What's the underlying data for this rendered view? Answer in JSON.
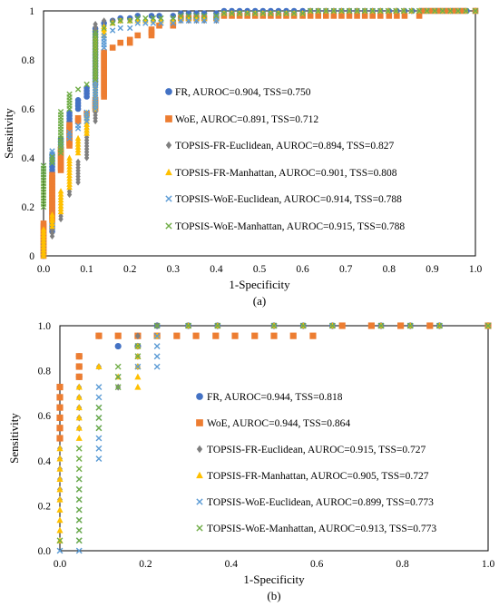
{
  "chart_data": [
    {
      "type": "scatter",
      "panel_label": "(a)",
      "xlabel": "1-Specificity",
      "ylabel": "Sensitivity",
      "xlim": [
        0,
        1
      ],
      "ylim": [
        0,
        1
      ],
      "xticks": [
        "0.0",
        "0.1",
        "0.2",
        "0.3",
        "0.4",
        "0.5",
        "0.6",
        "0.7",
        "0.8",
        "0.9",
        "1.0"
      ],
      "yticks": [
        "0",
        "0.2",
        "0.4",
        "0.6",
        "0.8",
        "1"
      ],
      "grid": false,
      "legend_position": "center",
      "series": [
        {
          "name": "FR, AUROC=0.904, TSS=0.750",
          "color": "#4472C4",
          "marker": "circle",
          "x": [
            0,
            0.02,
            0.04,
            0.06,
            0.08,
            0.1,
            0.12,
            0.14,
            0.16,
            0.2,
            0.25,
            0.3,
            0.4,
            0.6,
            0.8,
            1.0
          ],
          "y": [
            0,
            0.1,
            0.43,
            0.5,
            0.6,
            0.65,
            0.7,
            0.95,
            0.96,
            0.97,
            0.98,
            0.98,
            0.99,
            1.0,
            1.0,
            1.0
          ]
        },
        {
          "name": "WoE, AUROC=0.891, TSS=0.712",
          "color": "#ED7D31",
          "marker": "square",
          "x": [
            0,
            0.02,
            0.04,
            0.06,
            0.08,
            0.1,
            0.12,
            0.14,
            0.16,
            0.2,
            0.25,
            0.3,
            0.4,
            0.6,
            0.8,
            0.87,
            0.88,
            1.0
          ],
          "y": [
            0,
            0.15,
            0.35,
            0.45,
            0.55,
            0.58,
            0.6,
            0.65,
            0.85,
            0.87,
            0.9,
            0.94,
            0.97,
            0.98,
            0.98,
            0.98,
            1.0,
            1.0
          ]
        },
        {
          "name": "TOPSIS-FR-Euclidean, AUROC=0.894, TSS=0.827",
          "color": "#7F7F7F",
          "marker": "diamond",
          "x": [
            0,
            0.02,
            0.04,
            0.06,
            0.08,
            0.1,
            0.12,
            0.14,
            0.16,
            0.2,
            0.3,
            0.4,
            0.6,
            1.0
          ],
          "y": [
            0,
            0.08,
            0.15,
            0.25,
            0.3,
            0.4,
            0.55,
            0.96,
            0.96,
            0.96,
            0.96,
            0.96,
            0.99,
            1.0
          ]
        },
        {
          "name": "TOPSIS-FR-Manhattan, AUROC=0.901, TSS=0.808",
          "color": "#FFC000",
          "marker": "triangle",
          "x": [
            0,
            0.02,
            0.04,
            0.06,
            0.08,
            0.1,
            0.12,
            0.14,
            0.16,
            0.2,
            0.3,
            0.4,
            0.6,
            1.0
          ],
          "y": [
            0,
            0.12,
            0.18,
            0.28,
            0.42,
            0.5,
            0.6,
            0.9,
            0.95,
            0.96,
            0.96,
            0.97,
            0.99,
            1.0
          ]
        },
        {
          "name": "TOPSIS-WoE-Euclidean, AUROC=0.914, TSS=0.788",
          "color": "#5B9BD5",
          "marker": "x",
          "x": [
            0,
            0.02,
            0.04,
            0.06,
            0.08,
            0.1,
            0.12,
            0.14,
            0.16,
            0.2,
            0.3,
            0.4,
            0.6,
            1.0
          ],
          "y": [
            0.32,
            0.38,
            0.45,
            0.48,
            0.52,
            0.55,
            0.6,
            0.85,
            0.92,
            0.93,
            0.95,
            0.96,
            0.99,
            1.0
          ]
        },
        {
          "name": "TOPSIS-WoE-Manhattan, AUROC=0.915, TSS=0.788",
          "color": "#70AD47",
          "marker": "x",
          "x": [
            0,
            0.02,
            0.04,
            0.06,
            0.08,
            0.1,
            0.12,
            0.14,
            0.16,
            0.2,
            0.3,
            0.4,
            0.6,
            1.0
          ],
          "y": [
            0.2,
            0.38,
            0.42,
            0.6,
            0.68,
            0.7,
            0.72,
            0.93,
            0.95,
            0.96,
            0.97,
            0.98,
            0.99,
            1.0
          ]
        }
      ]
    },
    {
      "type": "scatter",
      "panel_label": "(b)",
      "xlabel": "1-Specificity",
      "ylabel": "Sensitivity",
      "xlim": [
        0,
        1
      ],
      "ylim": [
        0,
        1
      ],
      "xticks": [
        "0.0",
        "0.2",
        "0.4",
        "0.6",
        "0.8",
        "1.0"
      ],
      "yticks": [
        "0.0",
        "0.2",
        "0.4",
        "0.6",
        "0.8",
        "1.0"
      ],
      "grid": false,
      "legend_position": "center",
      "series": [
        {
          "name": "FR, AUROC=0.944, TSS=0.818",
          "color": "#4472C4",
          "marker": "circle",
          "x": [
            0,
            0,
            0.045,
            0.091,
            0.136,
            0.182,
            0.227,
            0.3,
            0.5,
            0.75,
            1.0
          ],
          "y": [
            0.545,
            0.591,
            0.773,
            0.955,
            0.909,
            0.909,
            1.0,
            1.0,
            1.0,
            1.0,
            1.0
          ]
        },
        {
          "name": "WoE, AUROC=0.944, TSS=0.864",
          "color": "#ED7D31",
          "marker": "square",
          "x": [
            0,
            0.045,
            0.091,
            0.136,
            0.182,
            0.227,
            0.273,
            0.318,
            0.364,
            0.409,
            0.455,
            0.5,
            0.545,
            0.591,
            1.0
          ],
          "y": [
            0.5,
            0.773,
            0.955,
            0.955,
            0.955,
            0.955,
            0.955,
            0.955,
            0.955,
            0.955,
            0.955,
            0.955,
            0.955,
            0.955,
            1.0
          ]
        },
        {
          "name": "TOPSIS-FR-Euclidean, AUROC=0.915, TSS=0.727",
          "color": "#7F7F7F",
          "marker": "diamond",
          "x": [
            0,
            0.045,
            0.091,
            0.136,
            0.182,
            0.227,
            0.3,
            0.5,
            0.75,
            1.0
          ],
          "y": [
            0.227,
            0.545,
            0.818,
            0.727,
            0.818,
            1.0,
            1.0,
            1.0,
            1.0,
            1.0
          ]
        },
        {
          "name": "TOPSIS-FR-Manhattan, AUROC=0.905, TSS=0.727",
          "color": "#FFC000",
          "marker": "triangle",
          "x": [
            0,
            0.045,
            0.091,
            0.136,
            0.182,
            0.227,
            0.3,
            0.5,
            0.75,
            1.0
          ],
          "y": [
            0.045,
            0.5,
            0.818,
            0.773,
            0.727,
            0.955,
            1.0,
            1.0,
            1.0,
            1.0
          ]
        },
        {
          "name": "TOPSIS-WoE-Euclidean, AUROC=0.899, TSS=0.773",
          "color": "#5B9BD5",
          "marker": "x",
          "x": [
            0,
            0.045,
            0.091,
            0.091,
            0.136,
            0.182,
            0.227,
            0.3,
            0.5,
            0.75,
            1.0
          ],
          "y": [
            0.0,
            0.0,
            0.409,
            0.5,
            0.773,
            0.818,
            0.818,
            1.0,
            1.0,
            1.0,
            1.0
          ]
        },
        {
          "name": "TOPSIS-WoE-Manhattan, AUROC=0.913, TSS=0.773",
          "color": "#70AD47",
          "marker": "x",
          "x": [
            0,
            0.045,
            0.091,
            0.136,
            0.182,
            0.227,
            0.3,
            0.5,
            0.75,
            1.0
          ],
          "y": [
            0.045,
            0.045,
            0.545,
            0.727,
            0.864,
            1.0,
            1.0,
            1.0,
            1.0,
            1.0
          ]
        }
      ]
    }
  ]
}
